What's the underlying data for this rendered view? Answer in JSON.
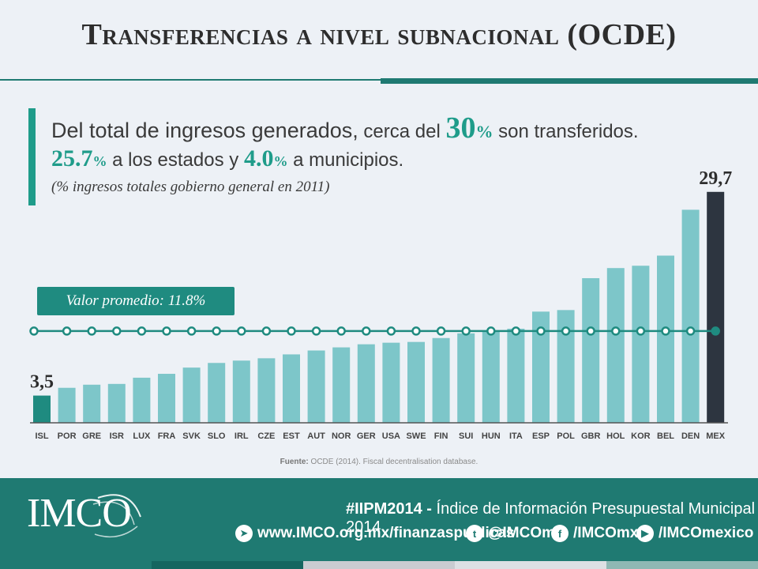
{
  "title": "Transferencias a nivel subnacional (OCDE)",
  "headline": {
    "part1": "Del total de ingresos generados,",
    "part2": " cerca del ",
    "big30": "30",
    "pct": "%",
    "part3": " son transferidos.",
    "num_states": "25.7",
    "pct_states": "%",
    "part4": " a los estados y ",
    "num_muni": "4.0",
    "pct_muni": "%",
    "part5": " a municipios.",
    "note": "(% ingresos totales gobierno general en 2011)"
  },
  "average_label": "Valor promedio: 11.8%",
  "source": {
    "label": "Fuente:",
    "text": "OCDE (2014). Fiscal decentralisation database."
  },
  "colors": {
    "accent": "#1f9c8a",
    "bar": "#7dc6c9",
    "bar_first": "#1f8b80",
    "bar_last": "#2d3540",
    "avg_line": "#1f8b80"
  },
  "chart_data": {
    "type": "bar",
    "categories": [
      "ISL",
      "POR",
      "GRE",
      "ISR",
      "LUX",
      "FRA",
      "SVK",
      "SLO",
      "IRL",
      "CZE",
      "EST",
      "AUT",
      "NOR",
      "GER",
      "USA",
      "SWE",
      "FIN",
      "SUI",
      "HUN",
      "ITA",
      "ESP",
      "POL",
      "GBR",
      "HOL",
      "KOR",
      "BEL",
      "DEN",
      "MEX"
    ],
    "values": [
      3.5,
      4.5,
      4.9,
      5.0,
      5.8,
      6.3,
      7.1,
      7.7,
      8.0,
      8.3,
      8.8,
      9.3,
      9.7,
      10.1,
      10.3,
      10.4,
      10.9,
      11.5,
      11.8,
      12.1,
      14.3,
      14.5,
      18.6,
      19.9,
      20.2,
      21.5,
      27.4,
      29.7
    ],
    "data_labels": {
      "ISL": "3,5",
      "MEX": "29,7"
    },
    "average": 11.8,
    "ylim": [
      0,
      31
    ]
  },
  "footer": {
    "logo": "IMCO",
    "hashtag": "#IIPM2014 -",
    "tagline": " Índice de Información Presupuestal Municipal 2014",
    "links": [
      {
        "icon": "telegram-icon",
        "glyph": "➤",
        "text": "www.IMCO.org.mx/finanzaspublicas"
      },
      {
        "icon": "twitter-icon",
        "glyph": "t",
        "text": "@IMCOmx"
      },
      {
        "icon": "facebook-icon",
        "glyph": "f",
        "text": "/IMCOmx"
      },
      {
        "icon": "youtube-icon",
        "glyph": "▶",
        "text": "/IMCOmexico"
      }
    ]
  }
}
